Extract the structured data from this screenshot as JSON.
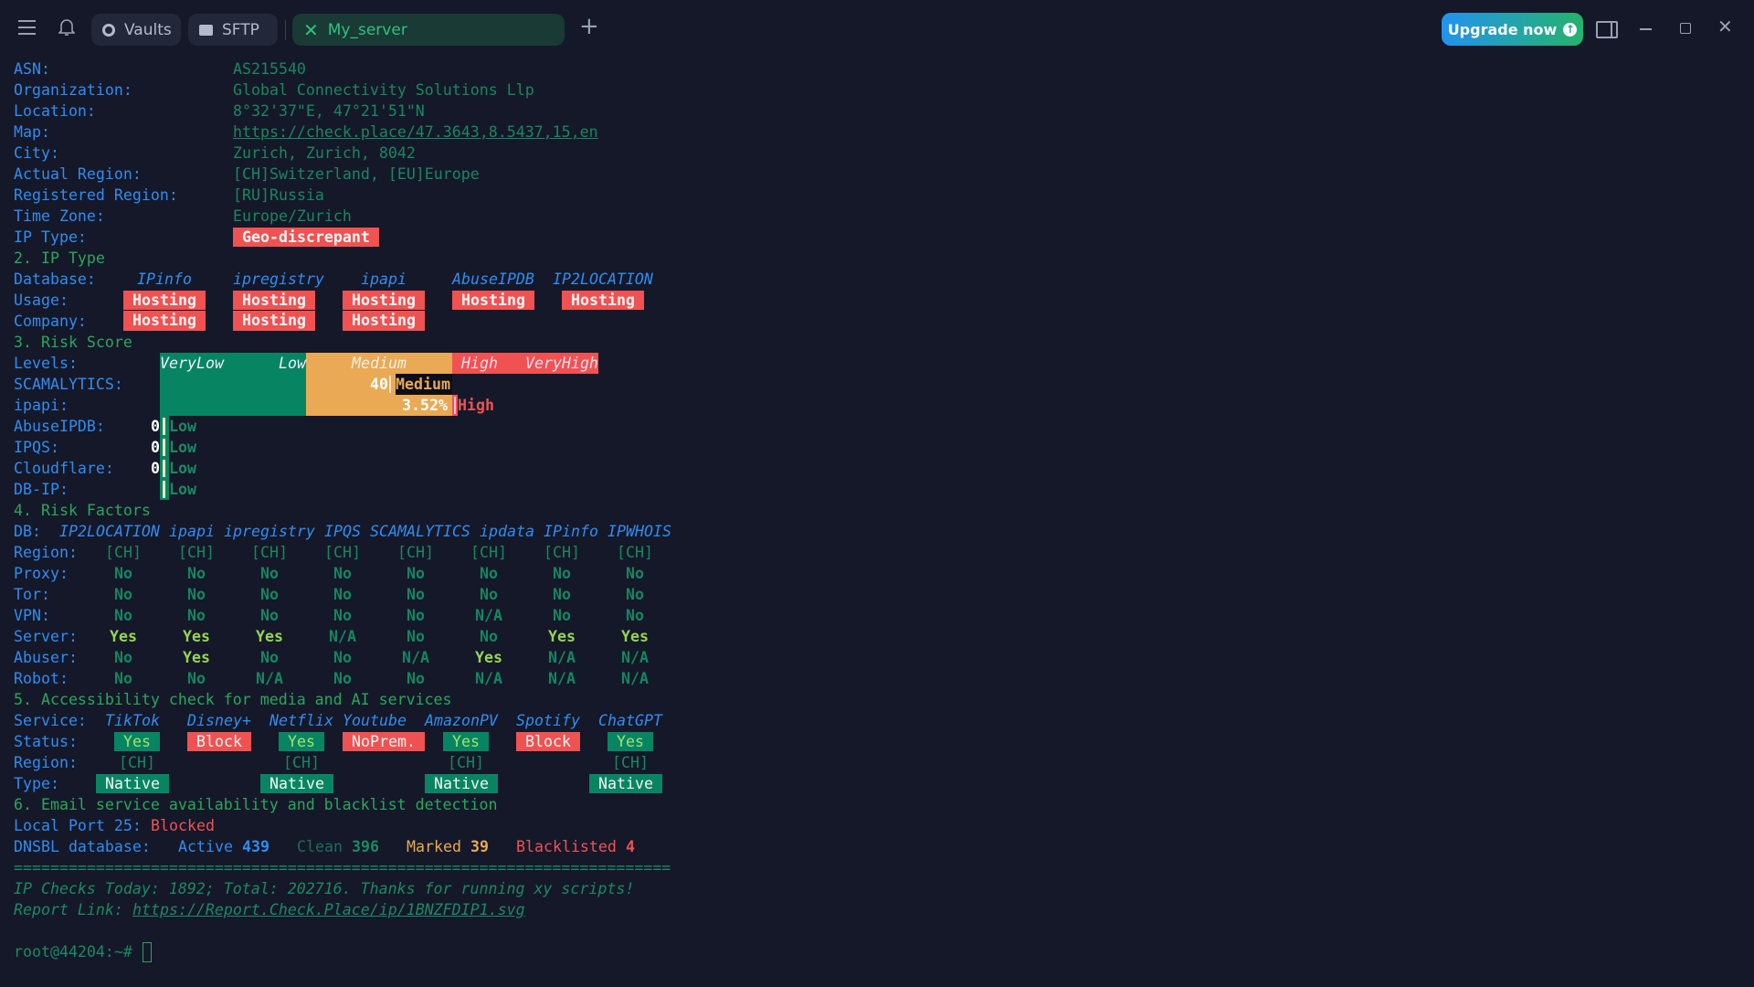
{
  "tabs": {
    "vaults": "Vaults",
    "sftp": "SFTP",
    "active": "My_server"
  },
  "upgrade_label": "Upgrade now",
  "info": [
    {
      "label": "ASN:",
      "value": "AS215540"
    },
    {
      "label": "Organization:",
      "value": "Global Connectivity Solutions Llp"
    },
    {
      "label": "Location:",
      "value": "8°32'37\"E, 47°21'51\"N"
    },
    {
      "label": "Map:",
      "value": "https://check.place/47.3643,8.5437,15,en"
    },
    {
      "label": "City:",
      "value": "Zurich, Zurich, 8042"
    },
    {
      "label": "Actual Region:",
      "value": "[CH]Switzerland, [EU]Europe"
    },
    {
      "label": "Registered Region:",
      "value": "[RU]Russia"
    },
    {
      "label": "Time Zone:",
      "value": "Europe/Zurich"
    }
  ],
  "ip_type": {
    "label": "IP Type:",
    "value": "Geo-discrepant"
  },
  "section2": {
    "title": "2. IP Type",
    "db_label": "Database:",
    "usage_label": "Usage:",
    "company_label": "Company:",
    "databases": [
      {
        "name": "IPinfo",
        "usage": "Hosting",
        "company": "Hosting"
      },
      {
        "name": "ipregistry",
        "usage": "Hosting",
        "company": "Hosting"
      },
      {
        "name": "ipapi",
        "usage": "Hosting",
        "company": "Hosting"
      },
      {
        "name": "AbuseIPDB",
        "usage": "Hosting"
      },
      {
        "name": "IP2LOCATION",
        "usage": "Hosting"
      }
    ]
  },
  "section3": {
    "title": "3. Risk Score",
    "levels_label": "Levels:",
    "levels": [
      "VeryLow",
      "Low",
      "Medium",
      "High",
      "VeryHigh"
    ],
    "scores": [
      {
        "label": "SCAMALYTICS:",
        "score": "40",
        "level": "Medium"
      },
      {
        "label": "ipapi:",
        "score": "3.52%",
        "level": "High"
      },
      {
        "label": "AbuseIPDB:",
        "score": "0",
        "level": "Low"
      },
      {
        "label": "IPQS:",
        "score": "0",
        "level": "Low"
      },
      {
        "label": "Cloudflare:",
        "score": "0",
        "level": "Low"
      },
      {
        "label": "DB-IP:",
        "level": "Low"
      }
    ]
  },
  "section4": {
    "title": "4. Risk Factors",
    "db_label": "DB:",
    "databases": [
      "IP2LOCATION",
      "ipapi",
      "ipregistry",
      "IPQS",
      "SCAMALYTICS",
      "ipdata",
      "IPinfo",
      "IPWHOIS"
    ],
    "rows": [
      {
        "label": "Region:",
        "values": [
          "[CH]",
          "[CH]",
          "[CH]",
          "[CH]",
          "[CH]",
          "[CH]",
          "[CH]",
          "[CH]"
        ]
      },
      {
        "label": "Proxy:",
        "values": [
          "No",
          "No",
          "No",
          "No",
          "No",
          "No",
          "No",
          "No"
        ]
      },
      {
        "label": "Tor:",
        "values": [
          "No",
          "No",
          "No",
          "No",
          "No",
          "No",
          "No",
          "No"
        ]
      },
      {
        "label": "VPN:",
        "values": [
          "No",
          "No",
          "No",
          "No",
          "No",
          "N/A",
          "No",
          "No"
        ]
      },
      {
        "label": "Server:",
        "values": [
          "Yes",
          "Yes",
          "Yes",
          "N/A",
          "No",
          "No",
          "Yes",
          "Yes"
        ]
      },
      {
        "label": "Abuser:",
        "values": [
          "No",
          "Yes",
          "No",
          "No",
          "N/A",
          "Yes",
          "N/A",
          "N/A"
        ]
      },
      {
        "label": "Robot:",
        "values": [
          "No",
          "No",
          "N/A",
          "No",
          "No",
          "N/A",
          "N/A",
          "N/A"
        ]
      }
    ]
  },
  "section5": {
    "title": "5. Accessibility check for media and AI services",
    "service_label": "Service:",
    "status_label": "Status:",
    "region_label": "Region:",
    "type_label": "Type:",
    "services": [
      {
        "name": "TikTok",
        "status": "Yes",
        "region": "[CH]",
        "type": "Native"
      },
      {
        "name": "Disney+",
        "status": "Block"
      },
      {
        "name": "Netflix",
        "status": "Yes",
        "region": "[CH]",
        "type": "Native"
      },
      {
        "name": "Youtube",
        "status": "NoPrem."
      },
      {
        "name": "AmazonPV",
        "status": "Yes",
        "region": "[CH]",
        "type": "Native"
      },
      {
        "name": "Spotify",
        "status": "Block"
      },
      {
        "name": "ChatGPT",
        "status": "Yes",
        "region": "[CH]",
        "type": "Native"
      }
    ]
  },
  "section6": {
    "title": "6. Email service availability and blacklist detection",
    "port_label": "Local Port 25:",
    "port_status": "Blocked",
    "dnsbl_label": "DNSBL database:",
    "active_label": "Active",
    "active": "439",
    "clean_label": "Clean",
    "clean": "396",
    "marked_label": "Marked",
    "marked": "39",
    "blacklisted_label": "Blacklisted",
    "blacklisted": "4"
  },
  "separator": "========================================================================",
  "footer": {
    "checks": "IP Checks Today: 1892; Total: 202716. Thanks for running xy scripts!",
    "report_label": "Report Link: ",
    "report_url": "https://Report.Check.Place/ip/1BNZFDIP1.svg"
  },
  "prompt": "root@44204:~#",
  "colors": {
    "background": "#151829",
    "label": "#2f8df0",
    "value": "#17885f",
    "danger": "#f05252",
    "warning": "#e9a955",
    "success": "#078563",
    "yes": "#93d550"
  }
}
